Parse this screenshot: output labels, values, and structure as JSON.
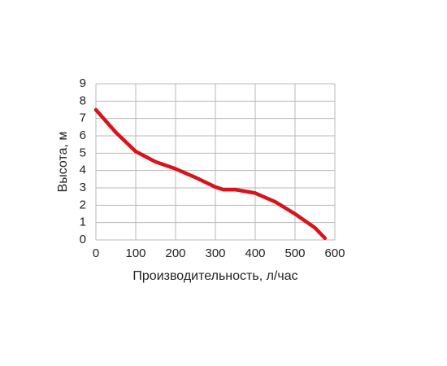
{
  "chart_data": {
    "type": "line",
    "x_label": "Производительность, л/час",
    "y_label": "Высота, м",
    "x": [
      0,
      50,
      100,
      150,
      200,
      250,
      300,
      320,
      350,
      400,
      450,
      500,
      550,
      575
    ],
    "series": [
      {
        "color": "#d7141a",
        "values": [
          7.5,
          6.2,
          5.1,
          4.5,
          4.1,
          3.6,
          3.05,
          2.9,
          2.9,
          2.7,
          2.2,
          1.5,
          0.7,
          0.1
        ]
      }
    ],
    "xlim": [
      0,
      600
    ],
    "xticks": [
      0,
      100,
      200,
      300,
      400,
      500,
      600
    ],
    "ylim": [
      0,
      9
    ],
    "yticks": [
      0,
      1,
      2,
      3,
      4,
      5,
      6,
      7,
      8,
      9
    ],
    "grid": true
  }
}
